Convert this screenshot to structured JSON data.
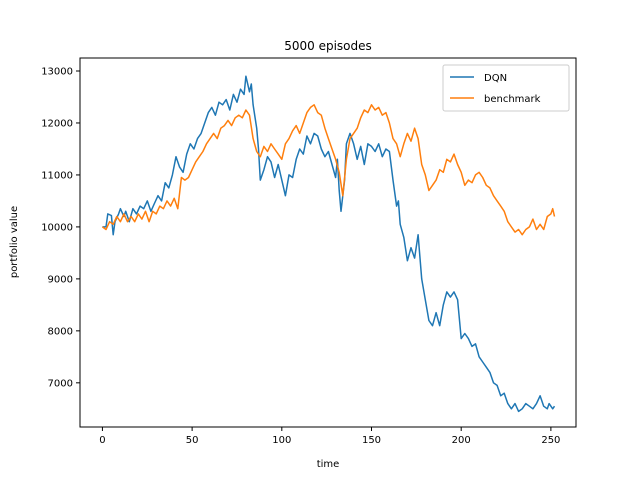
{
  "chart_data": {
    "type": "line",
    "title": "5000 episodes",
    "xlabel": "time",
    "ylabel": "portfolio value",
    "xlim": [
      -12.5,
      264
    ],
    "ylim": [
      6150,
      13250
    ],
    "xticks": [
      0,
      50,
      100,
      150,
      200,
      250
    ],
    "yticks": [
      7000,
      8000,
      9000,
      10000,
      11000,
      12000,
      13000
    ],
    "grid": false,
    "legend_position": "top-right",
    "series": [
      {
        "name": "DQN",
        "color": "#1f77b4",
        "points": [
          [
            0,
            10000
          ],
          [
            2,
            10000
          ],
          [
            3,
            10250
          ],
          [
            5,
            10220
          ],
          [
            6,
            9850
          ],
          [
            7,
            10100
          ],
          [
            9,
            10250
          ],
          [
            10,
            10350
          ],
          [
            12,
            10200
          ],
          [
            13,
            10300
          ],
          [
            15,
            10100
          ],
          [
            17,
            10350
          ],
          [
            19,
            10250
          ],
          [
            21,
            10400
          ],
          [
            23,
            10350
          ],
          [
            25,
            10500
          ],
          [
            27,
            10300
          ],
          [
            29,
            10450
          ],
          [
            31,
            10600
          ],
          [
            33,
            10500
          ],
          [
            35,
            10850
          ],
          [
            37,
            10750
          ],
          [
            39,
            11000
          ],
          [
            41,
            11350
          ],
          [
            43,
            11150
          ],
          [
            45,
            11050
          ],
          [
            47,
            11400
          ],
          [
            49,
            11600
          ],
          [
            51,
            11500
          ],
          [
            53,
            11700
          ],
          [
            55,
            11800
          ],
          [
            57,
            12000
          ],
          [
            59,
            12200
          ],
          [
            61,
            12300
          ],
          [
            63,
            12150
          ],
          [
            65,
            12400
          ],
          [
            67,
            12350
          ],
          [
            69,
            12450
          ],
          [
            71,
            12250
          ],
          [
            73,
            12550
          ],
          [
            75,
            12400
          ],
          [
            77,
            12650
          ],
          [
            79,
            12550
          ],
          [
            80,
            12900
          ],
          [
            82,
            12600
          ],
          [
            83,
            12750
          ],
          [
            84,
            12350
          ],
          [
            86,
            11900
          ],
          [
            87,
            11500
          ],
          [
            88,
            10900
          ],
          [
            90,
            11100
          ],
          [
            92,
            11350
          ],
          [
            94,
            11250
          ],
          [
            96,
            10950
          ],
          [
            98,
            11200
          ],
          [
            100,
            10900
          ],
          [
            102,
            10600
          ],
          [
            104,
            11000
          ],
          [
            106,
            10950
          ],
          [
            108,
            11300
          ],
          [
            110,
            11500
          ],
          [
            112,
            11400
          ],
          [
            114,
            11750
          ],
          [
            116,
            11600
          ],
          [
            118,
            11800
          ],
          [
            120,
            11750
          ],
          [
            122,
            11500
          ],
          [
            124,
            11350
          ],
          [
            126,
            11450
          ],
          [
            128,
            11200
          ],
          [
            130,
            10950
          ],
          [
            131,
            11300
          ],
          [
            132,
            10700
          ],
          [
            133,
            10300
          ],
          [
            135,
            10900
          ],
          [
            136,
            11600
          ],
          [
            138,
            11800
          ],
          [
            140,
            11600
          ],
          [
            142,
            11300
          ],
          [
            144,
            11550
          ],
          [
            146,
            11200
          ],
          [
            148,
            11600
          ],
          [
            150,
            11550
          ],
          [
            152,
            11450
          ],
          [
            154,
            11600
          ],
          [
            156,
            11350
          ],
          [
            158,
            11500
          ],
          [
            160,
            11450
          ],
          [
            162,
            10900
          ],
          [
            164,
            10400
          ],
          [
            165,
            10500
          ],
          [
            166,
            10050
          ],
          [
            168,
            9800
          ],
          [
            170,
            9350
          ],
          [
            172,
            9600
          ],
          [
            174,
            9400
          ],
          [
            176,
            9850
          ],
          [
            178,
            9000
          ],
          [
            180,
            8600
          ],
          [
            182,
            8200
          ],
          [
            184,
            8100
          ],
          [
            186,
            8350
          ],
          [
            188,
            8100
          ],
          [
            190,
            8500
          ],
          [
            192,
            8750
          ],
          [
            194,
            8650
          ],
          [
            196,
            8750
          ],
          [
            198,
            8600
          ],
          [
            200,
            7850
          ],
          [
            202,
            7950
          ],
          [
            204,
            7850
          ],
          [
            206,
            7700
          ],
          [
            208,
            7750
          ],
          [
            210,
            7500
          ],
          [
            212,
            7400
          ],
          [
            214,
            7300
          ],
          [
            216,
            7200
          ],
          [
            218,
            7000
          ],
          [
            220,
            6950
          ],
          [
            222,
            6750
          ],
          [
            224,
            6800
          ],
          [
            226,
            6600
          ],
          [
            228,
            6500
          ],
          [
            230,
            6600
          ],
          [
            232,
            6450
          ],
          [
            234,
            6500
          ],
          [
            236,
            6600
          ],
          [
            238,
            6550
          ],
          [
            240,
            6500
          ],
          [
            242,
            6600
          ],
          [
            244,
            6750
          ],
          [
            246,
            6550
          ],
          [
            248,
            6500
          ],
          [
            249,
            6600
          ],
          [
            251,
            6500
          ],
          [
            252,
            6550
          ]
        ]
      },
      {
        "name": "benchmark",
        "color": "#ff7f0e",
        "points": [
          [
            0,
            10000
          ],
          [
            2,
            9950
          ],
          [
            4,
            10100
          ],
          [
            6,
            10050
          ],
          [
            8,
            10200
          ],
          [
            10,
            10100
          ],
          [
            12,
            10250
          ],
          [
            14,
            10100
          ],
          [
            16,
            10200
          ],
          [
            18,
            10100
          ],
          [
            20,
            10250
          ],
          [
            22,
            10150
          ],
          [
            24,
            10300
          ],
          [
            26,
            10100
          ],
          [
            28,
            10300
          ],
          [
            30,
            10250
          ],
          [
            32,
            10400
          ],
          [
            34,
            10350
          ],
          [
            36,
            10500
          ],
          [
            38,
            10400
          ],
          [
            40,
            10550
          ],
          [
            42,
            10350
          ],
          [
            44,
            10950
          ],
          [
            46,
            10900
          ],
          [
            48,
            10950
          ],
          [
            50,
            11100
          ],
          [
            52,
            11250
          ],
          [
            54,
            11350
          ],
          [
            56,
            11450
          ],
          [
            58,
            11600
          ],
          [
            60,
            11700
          ],
          [
            62,
            11800
          ],
          [
            64,
            11700
          ],
          [
            66,
            11900
          ],
          [
            68,
            11950
          ],
          [
            70,
            12050
          ],
          [
            72,
            11950
          ],
          [
            74,
            12100
          ],
          [
            76,
            12150
          ],
          [
            78,
            12100
          ],
          [
            80,
            12250
          ],
          [
            82,
            12150
          ],
          [
            84,
            11700
          ],
          [
            86,
            11450
          ],
          [
            88,
            11350
          ],
          [
            90,
            11550
          ],
          [
            92,
            11450
          ],
          [
            94,
            11600
          ],
          [
            96,
            11500
          ],
          [
            98,
            11400
          ],
          [
            100,
            11300
          ],
          [
            102,
            11600
          ],
          [
            104,
            11700
          ],
          [
            106,
            11850
          ],
          [
            108,
            11950
          ],
          [
            110,
            11800
          ],
          [
            112,
            12000
          ],
          [
            114,
            12200
          ],
          [
            116,
            12300
          ],
          [
            118,
            12350
          ],
          [
            120,
            12200
          ],
          [
            122,
            12150
          ],
          [
            124,
            11900
          ],
          [
            126,
            11700
          ],
          [
            128,
            11500
          ],
          [
            130,
            11300
          ],
          [
            132,
            11050
          ],
          [
            134,
            10600
          ],
          [
            136,
            11300
          ],
          [
            138,
            11700
          ],
          [
            140,
            11800
          ],
          [
            142,
            11900
          ],
          [
            144,
            12100
          ],
          [
            146,
            12250
          ],
          [
            148,
            12200
          ],
          [
            150,
            12350
          ],
          [
            152,
            12250
          ],
          [
            154,
            12300
          ],
          [
            156,
            12150
          ],
          [
            158,
            12200
          ],
          [
            160,
            12000
          ],
          [
            162,
            11700
          ],
          [
            164,
            11600
          ],
          [
            166,
            11350
          ],
          [
            168,
            11600
          ],
          [
            170,
            11800
          ],
          [
            172,
            11650
          ],
          [
            174,
            11900
          ],
          [
            176,
            11700
          ],
          [
            178,
            11200
          ],
          [
            180,
            11000
          ],
          [
            182,
            10700
          ],
          [
            184,
            10800
          ],
          [
            186,
            10900
          ],
          [
            188,
            11100
          ],
          [
            190,
            11050
          ],
          [
            192,
            11300
          ],
          [
            194,
            11250
          ],
          [
            196,
            11400
          ],
          [
            198,
            11200
          ],
          [
            200,
            11050
          ],
          [
            202,
            10800
          ],
          [
            204,
            10900
          ],
          [
            206,
            10850
          ],
          [
            208,
            11000
          ],
          [
            210,
            11050
          ],
          [
            212,
            10950
          ],
          [
            214,
            10800
          ],
          [
            216,
            10750
          ],
          [
            218,
            10600
          ],
          [
            220,
            10500
          ],
          [
            222,
            10400
          ],
          [
            224,
            10300
          ],
          [
            226,
            10100
          ],
          [
            228,
            10000
          ],
          [
            230,
            9900
          ],
          [
            232,
            9950
          ],
          [
            234,
            9850
          ],
          [
            236,
            9950
          ],
          [
            238,
            10000
          ],
          [
            240,
            10150
          ],
          [
            242,
            9950
          ],
          [
            244,
            10050
          ],
          [
            246,
            9950
          ],
          [
            248,
            10200
          ],
          [
            250,
            10250
          ],
          [
            251,
            10350
          ],
          [
            252,
            10200
          ]
        ]
      }
    ]
  }
}
